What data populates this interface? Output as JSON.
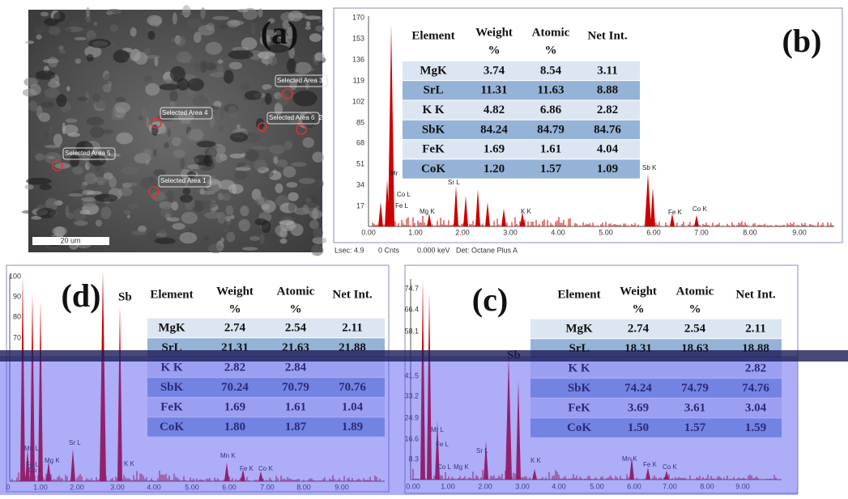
{
  "panel_a": {
    "label": "(a)",
    "areas": [
      "Selected Area 3",
      "Selected Area 4",
      "Selected Area 6",
      "Selected Area 5",
      "Selected Area 1"
    ],
    "area_suffix": "2",
    "scale_bar": "20 um"
  },
  "panel_b": {
    "label": "(b)",
    "yticks": [
      "170",
      "153",
      "136",
      "119",
      "102",
      "85",
      "68",
      "51",
      "34",
      "17"
    ],
    "xticks": [
      "0.00",
      "1.00",
      "2.00",
      "3.00",
      "4.00",
      "5.00",
      "6.00",
      "7.00",
      "8.00",
      "9.00"
    ],
    "footer": [
      "Lsec: 4.9",
      "0 Cnts",
      "0.000 keV",
      "Det: Octane Plus A"
    ],
    "peaks": [
      "Mr",
      "Co L",
      "Fe L",
      "Mg K",
      "Sr L",
      "K K",
      "Sb K",
      "Fe K",
      "Co K"
    ],
    "table": {
      "header": [
        "Element",
        "Weight",
        "%",
        "Atomic",
        "%",
        "Net Int."
      ],
      "rows": [
        [
          "MgK",
          "3.74",
          "8.54",
          "3.11"
        ],
        [
          "SrL",
          "11.31",
          "11.63",
          "8.88"
        ],
        [
          "K K",
          "4.82",
          "6.86",
          "2.82"
        ],
        [
          "SbK",
          "84.24",
          "84.79",
          "84.76"
        ],
        [
          "FeK",
          "1.69",
          "1.61",
          "4.04"
        ],
        [
          "CoK",
          "1.20",
          "1.57",
          "1.09"
        ]
      ]
    }
  },
  "panel_d": {
    "label": "(d)",
    "sb": "Sb",
    "yticks": [
      "100",
      "90",
      "80",
      "70"
    ],
    "xticks": [
      "0",
      "1.00",
      "2.00",
      "3.00",
      "4.00",
      "5.00",
      "6.00",
      "7.00",
      "8.00",
      "9.00"
    ],
    "peaks": [
      "Mn L",
      "Co L",
      "Fe L",
      "Mg K",
      "Sr L",
      "K K",
      "Mn K",
      "Fe K",
      "Co K"
    ],
    "table": {
      "header": [
        "Element",
        "Weight",
        "%",
        "Atomic",
        "%",
        "Net Int."
      ],
      "rows": [
        [
          "MgK",
          "2.74",
          "2.54",
          "2.11"
        ],
        [
          "SrL",
          "21.31",
          "21.63",
          "21.88"
        ],
        [
          "K K",
          "2.82",
          "2.84",
          ""
        ],
        [
          "SbK",
          "70.24",
          "70.79",
          "70.76"
        ],
        [
          "FeK",
          "1.69",
          "1.61",
          "1.04"
        ],
        [
          "CoK",
          "1.80",
          "1.87",
          "1.89"
        ]
      ]
    }
  },
  "panel_c": {
    "label": "(c)",
    "sb": "Sb",
    "yticks": [
      "74.7",
      "66.4",
      "58.1",
      "41.5",
      "33.2",
      "24.9",
      "16.6",
      "8.3"
    ],
    "xticks": [
      "0.00",
      "1.00",
      "2.00",
      "3.00",
      "4.00",
      "5.00",
      "6.00",
      "7.00",
      "8.00",
      "9.00"
    ],
    "peaks": [
      "Mr L",
      "Fe L",
      "Co L",
      "Mg K",
      "Sr L",
      "K K",
      "Mn K",
      "Fe K",
      "Co K"
    ],
    "table": {
      "header": [
        "Element",
        "Weight",
        "%",
        "Atomic",
        "%",
        "Net Int."
      ],
      "rows": [
        [
          "MgK",
          "2.74",
          "2.54",
          "2.11"
        ],
        [
          "SrL",
          "18.31",
          "18.63",
          "18.88"
        ],
        [
          "K K",
          "",
          "",
          "2.82"
        ],
        [
          "SbK",
          "74.24",
          "74.79",
          "74.76"
        ],
        [
          "FeK",
          "3.69",
          "3.61",
          "3.04"
        ],
        [
          "CoK",
          "1.50",
          "1.57",
          "1.59"
        ]
      ]
    }
  }
}
